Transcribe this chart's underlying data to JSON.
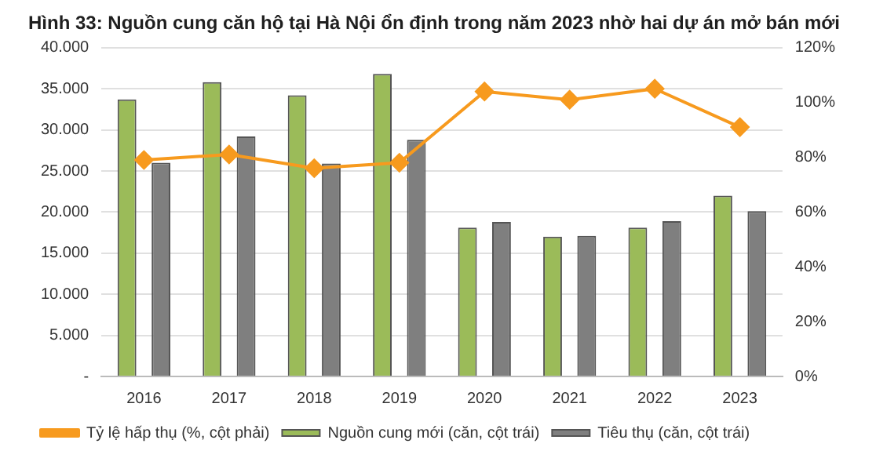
{
  "chart_data": {
    "type": "bar",
    "title": "Hình 33: Nguồn cung căn hộ tại Hà Nội ổn định trong năm 2023 nhờ hai dự án mở bán mới",
    "categories": [
      "2016",
      "2017",
      "2018",
      "2019",
      "2020",
      "2021",
      "2022",
      "2023"
    ],
    "series": [
      {
        "name": "Nguồn cung mới (căn, cột trái)",
        "color": "#9bbb59",
        "values": [
          33700,
          35800,
          34200,
          36800,
          18100,
          17000,
          18100,
          22000
        ]
      },
      {
        "name": "Tiêu thụ (căn, cột trái)",
        "color": "#7f7f7f",
        "values": [
          26000,
          29200,
          25900,
          28800,
          18800,
          17100,
          18900,
          20100
        ]
      },
      {
        "name": "Tỷ lệ hấp thụ (%, cột phải)",
        "type": "line",
        "axis": "y2",
        "color": "#f79a1e",
        "marker": "diamond",
        "values": [
          79,
          81,
          76,
          78,
          104,
          101,
          105,
          91
        ]
      }
    ],
    "ylim": [
      0,
      40000
    ],
    "yticks": [
      {
        "value": 0,
        "label": "-"
      },
      {
        "value": 5000,
        "label": "5.000"
      },
      {
        "value": 10000,
        "label": "10.000"
      },
      {
        "value": 15000,
        "label": "15.000"
      },
      {
        "value": 20000,
        "label": "20.000"
      },
      {
        "value": 25000,
        "label": "25.000"
      },
      {
        "value": 30000,
        "label": "30.000"
      },
      {
        "value": 35000,
        "label": "35.000"
      },
      {
        "value": 40000,
        "label": "40.000"
      }
    ],
    "y2lim": [
      0,
      120
    ],
    "y2ticks": [
      {
        "value": 0,
        "label": "0%"
      },
      {
        "value": 20,
        "label": "20%"
      },
      {
        "value": 40,
        "label": "40%"
      },
      {
        "value": 60,
        "label": "60%"
      },
      {
        "value": 80,
        "label": "80%"
      },
      {
        "value": 100,
        "label": "100%"
      },
      {
        "value": 120,
        "label": "120%"
      }
    ],
    "grid": "y",
    "legend": "bottom"
  }
}
